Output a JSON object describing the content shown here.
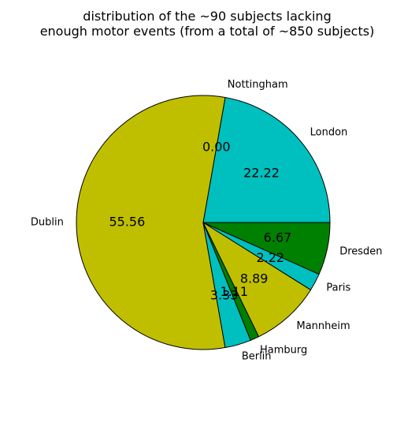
{
  "chart_data": {
    "type": "pie",
    "title": [
      "distribution of the ~90 subjects lacking",
      "enough motor events (from a total of ~850 subjects)"
    ],
    "slices": [
      {
        "label": "London",
        "value": 22.22,
        "display": "22.22",
        "color": "#00bfbf"
      },
      {
        "label": "Nottingham",
        "value": 0.0,
        "display": "0.00",
        "color": "#bfbf00"
      },
      {
        "label": "Dublin",
        "value": 55.56,
        "display": "55.56",
        "color": "#bfbf00"
      },
      {
        "label": "Berlin",
        "value": 3.33,
        "display": "3.33",
        "color": "#00bfbf"
      },
      {
        "label": "Hamburg",
        "value": 1.11,
        "display": "1.11",
        "color": "#008000"
      },
      {
        "label": "Mannheim",
        "value": 8.89,
        "display": "8.89",
        "color": "#bfbf00"
      },
      {
        "label": "Paris",
        "value": 2.22,
        "display": "2.22",
        "color": "#00bfbf"
      },
      {
        "label": "Dresden",
        "value": 6.67,
        "display": "6.67",
        "color": "#008000"
      }
    ],
    "start_angle_deg": 0,
    "direction": "counterclockwise"
  }
}
